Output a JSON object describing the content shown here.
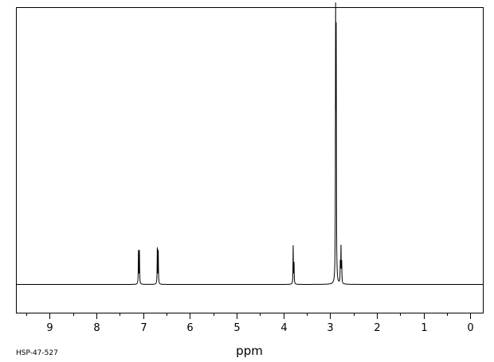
{
  "chart_data": {
    "type": "line",
    "title": "",
    "xlabel": "ppm",
    "ylabel": "",
    "xlim": [
      9.72,
      -0.27
    ],
    "x_reversed": true,
    "grid": false,
    "legend": "none",
    "x_tick_labels": [
      "9",
      "8",
      "7",
      "6",
      "5",
      "4",
      "3",
      "2",
      "1",
      "0"
    ],
    "x_tick_values": [
      9,
      8,
      7,
      6,
      5,
      4,
      3,
      2,
      1,
      0
    ],
    "x_minor_ticks": [
      9.5,
      8.5,
      7.5,
      6.5,
      5.5,
      4.5,
      3.5,
      2.5,
      1.5,
      0.5
    ],
    "peaks_relative_intensity": [
      {
        "ppm": 7.098,
        "y": 0.13
      },
      {
        "ppm": 7.078,
        "y": 0.13
      },
      {
        "ppm": 6.695,
        "y": 0.14
      },
      {
        "ppm": 6.675,
        "y": 0.13
      },
      {
        "ppm": 3.788,
        "y": 0.15
      },
      {
        "ppm": 3.77,
        "y": 0.08
      },
      {
        "ppm": 2.88,
        "y": 1.0
      },
      {
        "ppm": 2.868,
        "y": 0.91
      },
      {
        "ppm": 2.78,
        "y": 0.08
      },
      {
        "ppm": 2.765,
        "y": 0.14
      },
      {
        "ppm": 2.75,
        "y": 0.08
      }
    ],
    "line_color": "#000000"
  },
  "footer": {
    "code": "HSP-47-527"
  }
}
